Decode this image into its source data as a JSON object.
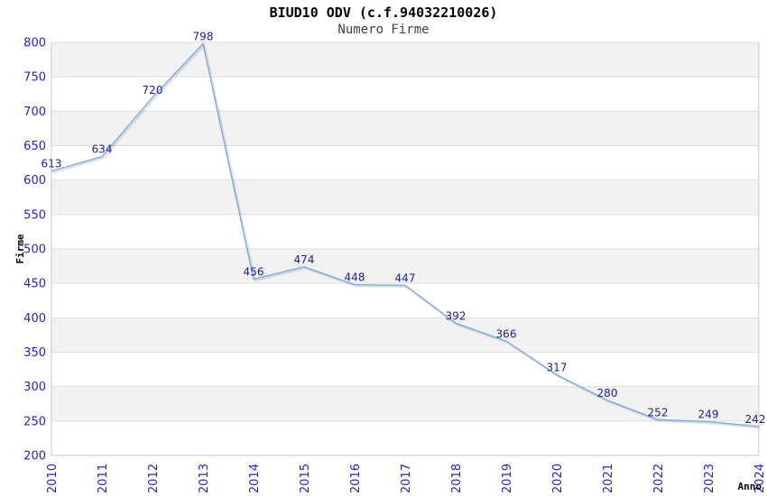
{
  "header": {
    "title": "BIUD10 ODV (c.f.94032210026)",
    "subtitle": "Numero Firme"
  },
  "chart_data": {
    "type": "line",
    "title": "BIUD10 ODV (c.f.94032210026)",
    "subtitle": "Numero Firme",
    "xlabel": "Anno",
    "ylabel": "Firme",
    "x": [
      "2010",
      "2011",
      "2012",
      "2013",
      "2014",
      "2015",
      "2016",
      "2017",
      "2018",
      "2019",
      "2020",
      "2021",
      "2022",
      "2023",
      "2024"
    ],
    "values": [
      613,
      634,
      720,
      798,
      456,
      474,
      448,
      447,
      392,
      366,
      317,
      280,
      252,
      249,
      242
    ],
    "yticks": [
      800,
      750,
      700,
      650,
      600,
      550,
      500,
      450,
      400,
      350,
      300,
      250,
      200
    ],
    "ylim": [
      200,
      800
    ],
    "grid": "horizontal-bands-alternating",
    "legend": "none",
    "data_labels": "above-points",
    "colors": {
      "line": "#7cace6",
      "data_label": "#1f1f8f",
      "tick_label": "#2323cc",
      "band_gray": "#f2f2f2",
      "band_white": "#ffffff",
      "gridline": "#dedede",
      "axis": "#c6c6c6",
      "title": "#000000",
      "subtitle": "#3d3d5c",
      "axis_title": "#000000"
    }
  }
}
